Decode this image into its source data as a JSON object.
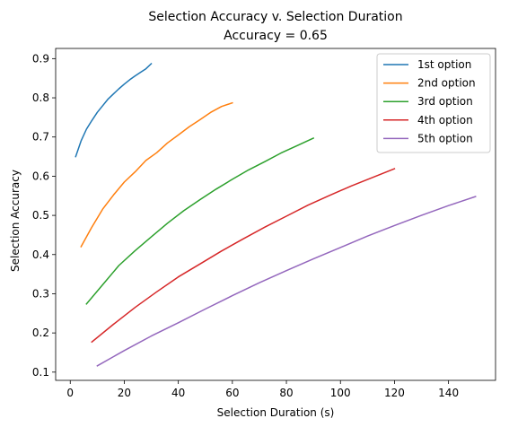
{
  "chart_data": {
    "type": "line",
    "title": "Selection Accuracy v. Selection Duration",
    "subtitle": "Accuracy = 0.65",
    "xlabel": "Selection Duration (s)",
    "ylabel": "Selection Accuracy",
    "xlim": [
      -5.4,
      157.4
    ],
    "ylim": [
      0.079,
      0.926
    ],
    "xticks": [
      0,
      20,
      40,
      60,
      80,
      100,
      120,
      140
    ],
    "yticks": [
      0.1,
      0.2,
      0.3,
      0.4,
      0.5,
      0.6,
      0.7,
      0.8,
      0.9
    ],
    "grid": false,
    "legend_position": "top-right",
    "series": [
      {
        "name": "1st option",
        "color": "#1f77b4",
        "x": [
          2,
          4,
          6,
          8,
          10,
          12,
          14,
          16,
          18,
          20,
          22,
          24,
          26,
          28,
          30
        ],
        "y": [
          0.65,
          0.69,
          0.72,
          0.742,
          0.763,
          0.78,
          0.797,
          0.81,
          0.823,
          0.835,
          0.846,
          0.856,
          0.865,
          0.874,
          0.887
        ]
      },
      {
        "name": "2nd option",
        "color": "#ff7f0e",
        "x": [
          4,
          8,
          12,
          16,
          20,
          24,
          28,
          32,
          36,
          40,
          44,
          48,
          52,
          56,
          60
        ],
        "y": [
          0.42,
          0.47,
          0.516,
          0.552,
          0.585,
          0.611,
          0.64,
          0.66,
          0.685,
          0.705,
          0.726,
          0.744,
          0.763,
          0.778,
          0.787
        ]
      },
      {
        "name": "3rd option",
        "color": "#2ca02c",
        "x": [
          6,
          12,
          18,
          24,
          30,
          36,
          42,
          48,
          54,
          60,
          66,
          72,
          78,
          84,
          90
        ],
        "y": [
          0.274,
          0.323,
          0.372,
          0.41,
          0.445,
          0.48,
          0.512,
          0.54,
          0.567,
          0.592,
          0.616,
          0.637,
          0.659,
          0.678,
          0.697
        ]
      },
      {
        "name": "4th option",
        "color": "#d62728",
        "x": [
          8,
          16,
          24,
          32,
          40,
          48,
          56,
          64,
          72,
          80,
          88,
          96,
          104,
          112,
          120
        ],
        "y": [
          0.177,
          0.222,
          0.265,
          0.305,
          0.343,
          0.376,
          0.409,
          0.44,
          0.47,
          0.498,
          0.526,
          0.551,
          0.575,
          0.597,
          0.619
        ]
      },
      {
        "name": "5th option",
        "color": "#9467bd",
        "x": [
          10,
          20,
          30,
          40,
          50,
          60,
          70,
          80,
          90,
          100,
          110,
          120,
          130,
          140,
          150
        ],
        "y": [
          0.116,
          0.155,
          0.192,
          0.226,
          0.261,
          0.295,
          0.328,
          0.359,
          0.389,
          0.418,
          0.447,
          0.474,
          0.5,
          0.525,
          0.548
        ]
      }
    ]
  }
}
